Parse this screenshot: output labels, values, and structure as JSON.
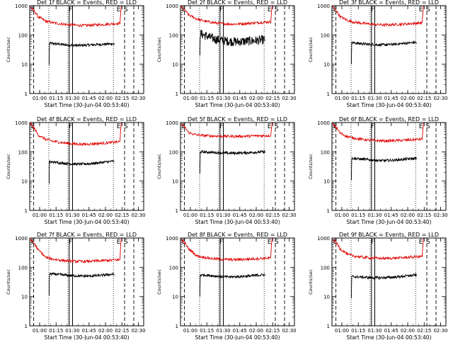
{
  "chart_data": [
    {
      "type": "line",
      "title": "Det 1f BLACK = Events, RED = LLD",
      "xlabel": "Start Time (30-Jun-04 00:53:40)",
      "ylabel": "Counts/sec",
      "yscale": "log",
      "ylim": [
        1,
        1000
      ],
      "xlim": [
        0.85,
        2.58
      ],
      "xticks": [
        1.0,
        1.25,
        1.5,
        1.75,
        2.0,
        2.25,
        2.5
      ],
      "xtick_labels": [
        "01:00",
        "01:15",
        "01:30",
        "01:45",
        "02:00",
        "02:15",
        "02:30"
      ],
      "ytick_labels": [
        "1",
        "10",
        "100",
        "1000"
      ],
      "series": [
        {
          "name": "Events",
          "color": "#000000",
          "start": 1.15,
          "end": 2.13,
          "levels": [
            52,
            50,
            48,
            46,
            45,
            44,
            44,
            45,
            46,
            47,
            48,
            49,
            50
          ]
        },
        {
          "name": "LLD",
          "color": "#e00000",
          "start": 0.86,
          "end": 2.22,
          "levels": [
            900,
            420,
            300,
            260,
            240,
            225,
            215,
            210,
            215,
            222,
            230,
            240,
            250
          ]
        }
      ],
      "markers": {
        "dotted": [
          1.14,
          1.43,
          2.12
        ],
        "solid": [
          1.45,
          1.5
        ],
        "dashed": [
          0.91,
          2.29,
          2.43
        ],
        "labels": [
          {
            "text": "E",
            "x": 0.9
          },
          {
            "text": "F",
            "x": 1.47
          },
          {
            "text": "E",
            "x": 2.2
          },
          {
            "text": "S",
            "x": 2.31
          }
        ]
      }
    },
    {
      "type": "line",
      "title": "Det 2f BLACK = Events, RED = LLD",
      "xlabel": "Start Time (30-Jun-04 00:53:40)",
      "ylabel": "Counts/sec",
      "yscale": "log",
      "ylim": [
        1,
        1000
      ],
      "xlim": [
        0.85,
        2.58
      ],
      "xticks": [
        1.0,
        1.25,
        1.5,
        1.75,
        2.0,
        2.25,
        2.5
      ],
      "xtick_labels": [
        "01:00",
        "01:15",
        "01:30",
        "01:45",
        "02:00",
        "02:15",
        "02:30"
      ],
      "ytick_labels": [
        "1",
        "10",
        "100",
        "1000"
      ],
      "series": [
        {
          "name": "Events",
          "color": "#000000",
          "start": 1.15,
          "end": 2.13,
          "levels": [
            110,
            95,
            80,
            70,
            65,
            62,
            60,
            58,
            60,
            62,
            64,
            66,
            68
          ]
        },
        {
          "name": "LLD",
          "color": "#e00000",
          "start": 0.86,
          "end": 2.22,
          "levels": [
            900,
            480,
            360,
            300,
            270,
            250,
            240,
            235,
            240,
            250,
            260,
            270,
            280
          ]
        }
      ],
      "markers": {
        "dotted": [
          1.14,
          1.43,
          2.12
        ],
        "solid": [
          1.45,
          1.5
        ],
        "dashed": [
          0.91,
          2.29,
          2.43
        ],
        "labels": [
          {
            "text": "E",
            "x": 0.9
          },
          {
            "text": "F",
            "x": 1.47
          },
          {
            "text": "E",
            "x": 2.2
          },
          {
            "text": "S",
            "x": 2.31
          }
        ]
      }
    },
    {
      "type": "line",
      "title": "Det 3f BLACK = Events, RED = LLD",
      "xlabel": "Start Time (30-Jun-04 00:53:40)",
      "ylabel": "Counts/sec",
      "yscale": "log",
      "ylim": [
        1,
        1000
      ],
      "xlim": [
        0.85,
        2.58
      ],
      "xticks": [
        1.0,
        1.25,
        1.5,
        1.75,
        2.0,
        2.25,
        2.5
      ],
      "xtick_labels": [
        "01:00",
        "01:15",
        "01:30",
        "01:45",
        "02:00",
        "02:15",
        "02:30"
      ],
      "ytick_labels": [
        "1",
        "10",
        "100",
        "1000"
      ],
      "series": [
        {
          "name": "Events",
          "color": "#000000",
          "start": 1.15,
          "end": 2.13,
          "levels": [
            55,
            52,
            50,
            48,
            47,
            46,
            46,
            47,
            48,
            50,
            52,
            54,
            56
          ]
        },
        {
          "name": "LLD",
          "color": "#e00000",
          "start": 0.86,
          "end": 2.22,
          "levels": [
            900,
            420,
            310,
            270,
            250,
            235,
            225,
            220,
            225,
            232,
            240,
            250,
            260
          ]
        }
      ],
      "markers": {
        "dotted": [
          1.14,
          1.43,
          2.12
        ],
        "solid": [
          1.45,
          1.5
        ],
        "dashed": [
          0.91,
          2.29,
          2.43
        ],
        "labels": [
          {
            "text": "E",
            "x": 0.9
          },
          {
            "text": "F",
            "x": 1.47
          },
          {
            "text": "E",
            "x": 2.2
          },
          {
            "text": "S",
            "x": 2.31
          }
        ]
      }
    },
    {
      "type": "line",
      "title": "Det 4f BLACK = Events, RED = LLD",
      "xlabel": "Start Time (30-Jun-04 00:53:40)",
      "ylabel": "Counts/sec",
      "yscale": "log",
      "ylim": [
        1,
        1000
      ],
      "xlim": [
        0.85,
        2.58
      ],
      "xticks": [
        1.0,
        1.25,
        1.5,
        1.75,
        2.0,
        2.25,
        2.5
      ],
      "xtick_labels": [
        "01:00",
        "01:15",
        "01:30",
        "01:45",
        "02:00",
        "02:15",
        "02:30"
      ],
      "ytick_labels": [
        "1",
        "10",
        "100",
        "1000"
      ],
      "series": [
        {
          "name": "Events",
          "color": "#000000",
          "start": 1.15,
          "end": 2.13,
          "levels": [
            45,
            44,
            42,
            40,
            39,
            38,
            38,
            39,
            40,
            42,
            44,
            46,
            48
          ]
        },
        {
          "name": "LLD",
          "color": "#e00000",
          "start": 0.86,
          "end": 2.22,
          "levels": [
            900,
            380,
            270,
            230,
            210,
            195,
            185,
            180,
            185,
            192,
            200,
            210,
            220
          ]
        }
      ],
      "markers": {
        "dotted": [
          1.14,
          1.43,
          2.12
        ],
        "solid": [
          1.45,
          1.5
        ],
        "dashed": [
          0.91,
          2.29,
          2.43
        ],
        "labels": [
          {
            "text": "E",
            "x": 0.9
          },
          {
            "text": "F",
            "x": 1.47
          },
          {
            "text": "E",
            "x": 2.2
          },
          {
            "text": "S",
            "x": 2.31
          }
        ]
      }
    },
    {
      "type": "line",
      "title": "Det 5f BLACK = Events, RED = LLD",
      "xlabel": "Start Time (30-Jun-04 00:53:40)",
      "ylabel": "Counts/sec",
      "yscale": "log",
      "ylim": [
        1,
        1000
      ],
      "xlim": [
        0.85,
        2.58
      ],
      "xticks": [
        1.0,
        1.25,
        1.5,
        1.75,
        2.0,
        2.25,
        2.5
      ],
      "xtick_labels": [
        "01:00",
        "01:15",
        "01:30",
        "01:45",
        "02:00",
        "02:15",
        "02:30"
      ],
      "ytick_labels": [
        "1",
        "10",
        "100",
        "1000"
      ],
      "series": [
        {
          "name": "Events",
          "color": "#000000",
          "start": 1.15,
          "end": 2.13,
          "levels": [
            100,
            98,
            96,
            94,
            92,
            90,
            90,
            91,
            92,
            94,
            96,
            98,
            100
          ]
        },
        {
          "name": "LLD",
          "color": "#e00000",
          "start": 0.86,
          "end": 2.22,
          "levels": [
            900,
            450,
            380,
            360,
            350,
            345,
            340,
            338,
            340,
            345,
            350,
            355,
            360
          ]
        }
      ],
      "markers": {
        "dotted": [
          1.14,
          1.43,
          2.12
        ],
        "solid": [
          1.45,
          1.5
        ],
        "dashed": [
          0.91,
          2.29,
          2.43
        ],
        "labels": [
          {
            "text": "E",
            "x": 0.9
          },
          {
            "text": "F",
            "x": 1.47
          },
          {
            "text": "E",
            "x": 2.2
          },
          {
            "text": "S",
            "x": 2.31
          }
        ]
      }
    },
    {
      "type": "line",
      "title": "Det 6f BLACK = Events, RED = LLD",
      "xlabel": "Start Time (30-Jun-04 00:53:40)",
      "ylabel": "Counts/sec",
      "yscale": "log",
      "ylim": [
        1,
        1000
      ],
      "xlim": [
        0.85,
        2.58
      ],
      "xticks": [
        1.0,
        1.25,
        1.5,
        1.75,
        2.0,
        2.25,
        2.5
      ],
      "xtick_labels": [
        "01:00",
        "01:15",
        "01:30",
        "01:45",
        "02:00",
        "02:15",
        "02:30"
      ],
      "ytick_labels": [
        "1",
        "10",
        "100",
        "1000"
      ],
      "series": [
        {
          "name": "Events",
          "color": "#000000",
          "start": 1.15,
          "end": 2.13,
          "levels": [
            60,
            58,
            56,
            54,
            52,
            50,
            50,
            51,
            52,
            54,
            56,
            58,
            60
          ]
        },
        {
          "name": "LLD",
          "color": "#e00000",
          "start": 0.86,
          "end": 2.22,
          "levels": [
            900,
            430,
            330,
            290,
            265,
            250,
            240,
            235,
            240,
            245,
            252,
            260,
            270
          ]
        }
      ],
      "markers": {
        "dotted": [
          1.14,
          1.43,
          2.12
        ],
        "solid": [
          1.45,
          1.5
        ],
        "dashed": [
          0.91,
          2.29,
          2.43
        ],
        "labels": [
          {
            "text": "E",
            "x": 0.9
          },
          {
            "text": "F",
            "x": 1.47
          },
          {
            "text": "E",
            "x": 2.2
          },
          {
            "text": "S",
            "x": 2.31
          }
        ]
      }
    },
    {
      "type": "line",
      "title": "Det 7f BLACK = Events, RED = LLD",
      "xlabel": "Start Time (30-Jun-04 00:53:40)",
      "ylabel": "Counts/sec",
      "yscale": "log",
      "ylim": [
        1,
        1000
      ],
      "xlim": [
        0.85,
        2.58
      ],
      "xticks": [
        1.0,
        1.25,
        1.5,
        1.75,
        2.0,
        2.25,
        2.5
      ],
      "xtick_labels": [
        "01:00",
        "01:15",
        "01:30",
        "01:45",
        "02:00",
        "02:15",
        "02:30"
      ],
      "ytick_labels": [
        "1",
        "10",
        "100",
        "1000"
      ],
      "series": [
        {
          "name": "Events",
          "color": "#000000",
          "start": 1.15,
          "end": 2.13,
          "levels": [
            60,
            58,
            56,
            54,
            52,
            51,
            50,
            50,
            51,
            52,
            54,
            56,
            58
          ]
        },
        {
          "name": "LLD",
          "color": "#e00000",
          "start": 0.86,
          "end": 2.22,
          "levels": [
            900,
            400,
            220,
            190,
            175,
            165,
            160,
            158,
            160,
            165,
            170,
            175,
            180
          ]
        }
      ],
      "markers": {
        "dotted": [
          1.14,
          1.43,
          2.12
        ],
        "solid": [
          1.45,
          1.5
        ],
        "dashed": [
          0.91,
          2.29,
          2.43
        ],
        "labels": [
          {
            "text": "E",
            "x": 0.9
          },
          {
            "text": "F",
            "x": 1.47
          },
          {
            "text": "E",
            "x": 2.2
          },
          {
            "text": "S",
            "x": 2.31
          }
        ]
      }
    },
    {
      "type": "line",
      "title": "Det 8f BLACK = Events, RED = LLD",
      "xlabel": "Start Time (30-Jun-04 00:53:40)",
      "ylabel": "Counts/sec",
      "yscale": "log",
      "ylim": [
        1,
        1000
      ],
      "xlim": [
        0.85,
        2.58
      ],
      "xticks": [
        1.0,
        1.25,
        1.5,
        1.75,
        2.0,
        2.25,
        2.5
      ],
      "xtick_labels": [
        "01:00",
        "01:15",
        "01:30",
        "01:45",
        "02:00",
        "02:15",
        "02:30"
      ],
      "ytick_labels": [
        "1",
        "10",
        "100",
        "1000"
      ],
      "series": [
        {
          "name": "Events",
          "color": "#000000",
          "start": 1.15,
          "end": 2.13,
          "levels": [
            55,
            54,
            52,
            50,
            48,
            47,
            47,
            48,
            49,
            50,
            52,
            54,
            56
          ]
        },
        {
          "name": "LLD",
          "color": "#e00000",
          "start": 0.86,
          "end": 2.22,
          "levels": [
            900,
            420,
            250,
            220,
            200,
            190,
            185,
            182,
            185,
            190,
            196,
            202,
            210
          ]
        }
      ],
      "markers": {
        "dotted": [
          1.14,
          1.43,
          2.12
        ],
        "solid": [
          1.45,
          1.5
        ],
        "dashed": [
          0.91,
          2.29,
          2.43
        ],
        "labels": [
          {
            "text": "E",
            "x": 0.9
          },
          {
            "text": "F",
            "x": 1.47
          },
          {
            "text": "E",
            "x": 2.2
          },
          {
            "text": "S",
            "x": 2.31
          }
        ]
      }
    },
    {
      "type": "line",
      "title": "Det 9f BLACK = Events, RED = LLD",
      "xlabel": "Start Time (30-Jun-04 00:53:40)",
      "ylabel": "Counts/sec",
      "yscale": "log",
      "ylim": [
        1,
        1000
      ],
      "xlim": [
        0.85,
        2.58
      ],
      "xticks": [
        1.0,
        1.25,
        1.5,
        1.75,
        2.0,
        2.25,
        2.5
      ],
      "xtick_labels": [
        "01:00",
        "01:15",
        "01:30",
        "01:45",
        "02:00",
        "02:15",
        "02:30"
      ],
      "ytick_labels": [
        "1",
        "10",
        "100",
        "1000"
      ],
      "series": [
        {
          "name": "Events",
          "color": "#000000",
          "start": 1.15,
          "end": 2.13,
          "levels": [
            48,
            47,
            46,
            45,
            44,
            44,
            44,
            45,
            46,
            48,
            50,
            52,
            55
          ]
        },
        {
          "name": "LLD",
          "color": "#e00000",
          "start": 0.86,
          "end": 2.22,
          "levels": [
            900,
            430,
            270,
            240,
            220,
            210,
            205,
            200,
            205,
            210,
            218,
            226,
            235
          ]
        }
      ],
      "markers": {
        "dotted": [
          1.14,
          1.43,
          2.12
        ],
        "solid": [
          1.45,
          1.5
        ],
        "dashed": [
          0.91,
          2.29,
          2.43
        ],
        "labels": [
          {
            "text": "E",
            "x": 0.9
          },
          {
            "text": "F",
            "x": 1.47
          },
          {
            "text": "E",
            "x": 2.2
          },
          {
            "text": "S",
            "x": 2.31
          }
        ]
      }
    }
  ]
}
